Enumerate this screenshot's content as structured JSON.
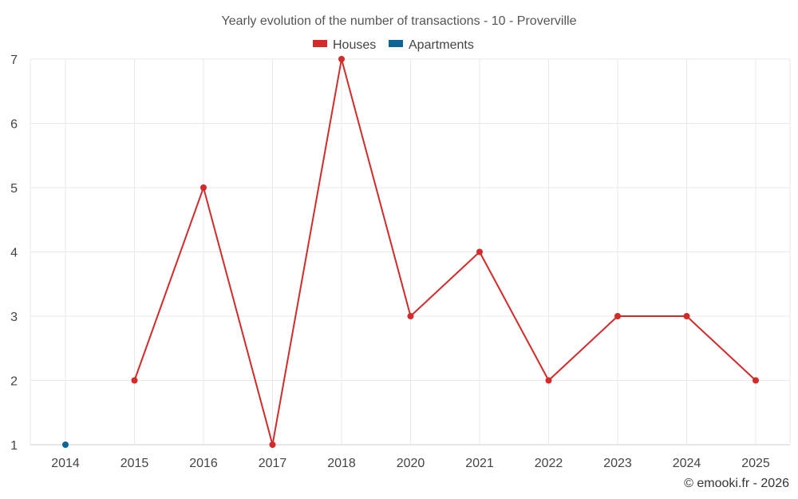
{
  "chart_data": {
    "type": "line",
    "title": "Yearly evolution of the number of transactions - 10 - Proverville",
    "categories": [
      "2014",
      "2015",
      "2016",
      "2017",
      "2018",
      "2020",
      "2021",
      "2022",
      "2023",
      "2024",
      "2025"
    ],
    "series": [
      {
        "name": "Houses",
        "color": "#d32a2a",
        "values": [
          null,
          2,
          5,
          1,
          7,
          3,
          4,
          2,
          3,
          3,
          2
        ]
      },
      {
        "name": "Apartments",
        "color": "#0d6596",
        "values": [
          1,
          null,
          null,
          null,
          null,
          null,
          null,
          null,
          null,
          null,
          null
        ]
      }
    ],
    "ylim": [
      1,
      7
    ],
    "yticks": [
      1,
      2,
      3,
      4,
      5,
      6,
      7
    ],
    "xlabel": "",
    "ylabel": "",
    "grid": true,
    "legend_position": "top-center"
  },
  "credit": "© emooki.fr - 2026"
}
